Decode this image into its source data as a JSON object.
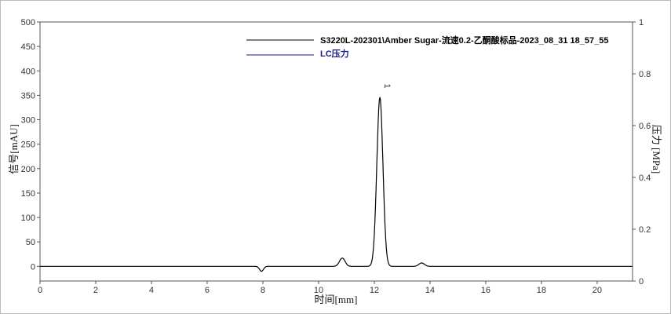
{
  "chart_data": {
    "type": "line",
    "xlabel": "时间[mm]",
    "ylabel": "信号[mAU]",
    "y2label": "压力 [MPa]",
    "xlim": [
      0,
      21.27
    ],
    "ylim": [
      -30,
      500
    ],
    "y2lim": [
      0,
      1
    ],
    "xticks": [
      0,
      2,
      4,
      6,
      8,
      10,
      12,
      14,
      16,
      18,
      20
    ],
    "yticks": [
      0,
      50,
      100,
      150,
      200,
      250,
      300,
      350,
      400,
      450,
      500
    ],
    "y2ticks": [
      0,
      0.2,
      0.4,
      0.6,
      0.8,
      1
    ],
    "y2ticklabels": [
      "0",
      "0.2",
      "0.4",
      "0.6",
      "0.8",
      "1"
    ],
    "grid": false,
    "legend_placement": "top-right",
    "series": [
      {
        "name": "S3220L-202301\\Amber Sugar-流速0.2-乙酮酸标品-2023_08_31 18_57_55",
        "color": "#000000",
        "baseline": 0,
        "peaks": [
          {
            "rt": 7.95,
            "height": -10,
            "width": 0.07
          },
          {
            "rt": 10.85,
            "height": 17,
            "width": 0.1
          },
          {
            "rt": 12.2,
            "height": 345,
            "width": 0.11
          },
          {
            "rt": 13.7,
            "height": 7,
            "width": 0.1
          }
        ]
      },
      {
        "name": "LC压力",
        "color": "#1a1a8c"
      }
    ],
    "annotations": [
      {
        "x": 12.2,
        "label": "1"
      }
    ]
  }
}
